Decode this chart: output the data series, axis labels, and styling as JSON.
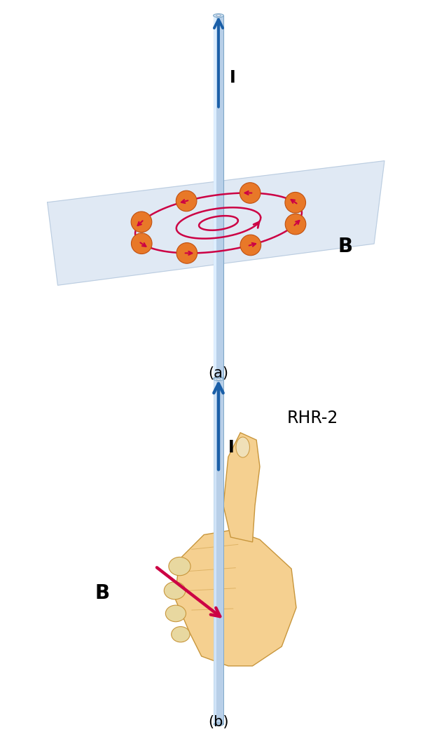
{
  "fig_width": 6.24,
  "fig_height": 10.48,
  "bg_color": "#ffffff",
  "panel_a_label": "(a)",
  "panel_b_label": "(b)",
  "wire_color": "#b8cfe8",
  "wire_edge_color": "#80a8c8",
  "wire_highlight": "#ddeeff",
  "arrow_color": "#1a5fa8",
  "spiral_color": "#cc0044",
  "B_label_color": "#000000",
  "I_label_color": "#000000",
  "rhr_label": "RHR-2",
  "B_label": "B",
  "I_label": "I",
  "hand_fill": "#f5d090",
  "hand_edge": "#c8963c",
  "finger_fill": "#f0c878",
  "knuckle_fill": "#e8d8a0",
  "nail_fill": "#f0e0b8",
  "orange_fill": "#e87828",
  "orange_edge": "#c05010",
  "plane_color": "#c8d8ec",
  "plane_alpha": 0.55
}
